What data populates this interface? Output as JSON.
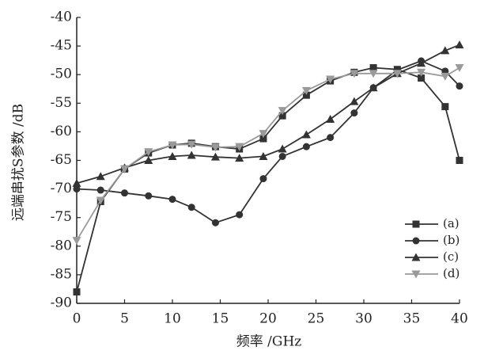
{
  "chart_data": {
    "type": "line",
    "x_label": "频率 /GHz",
    "y_label": "远端串扰S参数 /dB",
    "xlim": [
      0,
      40
    ],
    "ylim": [
      -90,
      -40
    ],
    "xticks": [
      0,
      5,
      10,
      15,
      20,
      25,
      30,
      35,
      40
    ],
    "yticks": [
      -90,
      -85,
      -80,
      -75,
      -70,
      -65,
      -60,
      -55,
      -50,
      -45,
      -40
    ],
    "x": [
      0,
      2.5,
      5,
      7.5,
      10,
      12,
      14.5,
      17,
      19.5,
      21.5,
      24,
      26.5,
      29,
      31,
      33.5,
      36,
      38.5,
      40
    ],
    "legend": "lower right",
    "series": [
      {
        "name": "(a)",
        "color": "#333333",
        "marker": "square",
        "values": [
          -88,
          -72.2,
          -66.5,
          -63.7,
          -62.3,
          -62,
          -62.6,
          -63,
          -61.2,
          -57.2,
          -53.6,
          -51.1,
          -49.6,
          -48.8,
          -49.1,
          -50.6,
          -55.6,
          -65
        ]
      },
      {
        "name": "(b)",
        "color": "#333333",
        "marker": "circle",
        "values": [
          -70,
          -70.2,
          -70.7,
          -71.2,
          -71.8,
          -73.2,
          -75.9,
          -74.5,
          -68.2,
          -64.3,
          -62.6,
          -61,
          -56.7,
          -52.3,
          -49.2,
          -47.6,
          -49.4,
          -52
        ]
      },
      {
        "name": "(c)",
        "color": "#333333",
        "marker": "triangle",
        "values": [
          -69,
          -67.8,
          -66.3,
          -65,
          -64.3,
          -64.1,
          -64.4,
          -64.6,
          -64.3,
          -63,
          -60.5,
          -57.8,
          -54.7,
          -52.3,
          -49.8,
          -48,
          -45.8,
          -44.8
        ]
      },
      {
        "name": "(d)",
        "color": "#9a9a9a",
        "marker": "triangle-down",
        "values": [
          -79,
          -72,
          -66.5,
          -63.5,
          -62.3,
          -62.2,
          -62.7,
          -62.6,
          -60.3,
          -56.3,
          -52.8,
          -50.8,
          -49.8,
          -49.8,
          -49.8,
          -49.6,
          -50.3,
          -48.8
        ]
      }
    ]
  }
}
